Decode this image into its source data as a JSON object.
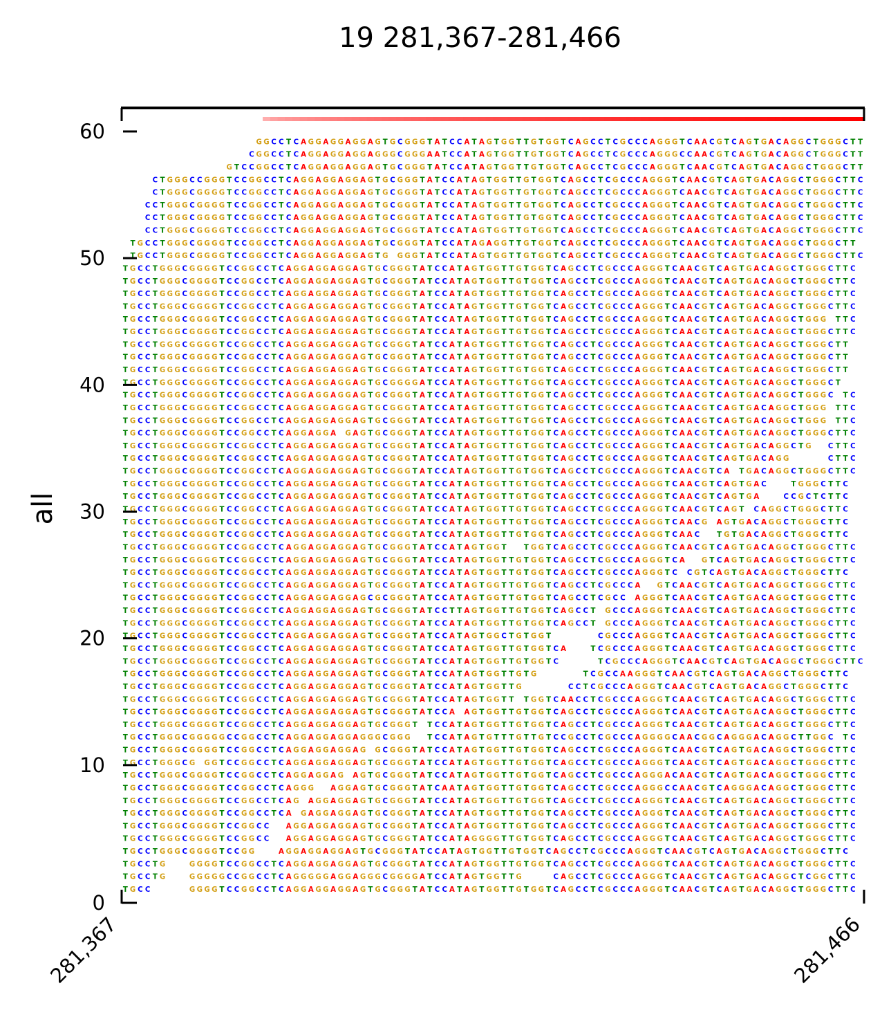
{
  "chart_data": {
    "type": "sequence-pileup",
    "title": "19 281,367-281,466",
    "ylabel": "all",
    "xlabel": "",
    "x_ticks": [
      "281,367",
      "281,466"
    ],
    "y_ticks": [
      "0",
      "10",
      "20",
      "30",
      "40",
      "50",
      "60"
    ],
    "xlim": [
      281367,
      281466
    ],
    "ylim": [
      0,
      60
    ],
    "base_colors": {
      "A": "#ff0000",
      "C": "#0000ff",
      "G": "#d4a017",
      "T": "#008000"
    },
    "coverage_bar": {
      "start": 281386,
      "end": 281466,
      "min_color": "#ffcccc",
      "max_color": "#ff0000"
    },
    "reads": [
      "TGCC     GGGGTCCGGCCTCAGGAGGAGGAGTGCGGGTATCCATAGTGGTTGTGGTCAGCCTCGCCCAGGGTCAACGTCAGTGACAGGCTGGGCTTC",
      "TGCCTG   GGGGGCCGGCCTCAGGGGGAGGAGGGCGGGGATCCATAGTGGTTG    CAGCCTCGCCCAGGGTCAACGTCAGTGACAGGCTCGGCTTC",
      "TGCCTG   GGGGTCCGGCCTCAGGAGGAGGAGTGCGGGTATCCATAGTGGTTGTGGTCAGCCTCGCCCAGGGTCAACGTCAGTGACAGGCTGGGCTTC",
      "TGCCTGGGCGGGGTCCGG   AGGAGGAGGAGTGCGGGTATCCATAGTGGTTGTGGTCAGCCTCGCCCAGGGTCAACGTCAGTGACAGGCTGGGCTTC",
      "TGCCTGGGCGGGGTCCGGCC  AGGAGGAGGAGTGCGGGTATCCATAGGGGTTGTGGTCAGCCTCGCCCAGGGTCAACGTCAGTGACAGGCTGGGCTTC",
      "TGCCTGGGCGGGGTCCGGCC  AGGAGGAGGAGTGCGGGTATCCATAGTGGTTGTGGTCAGCCTCGCCCAGGGTCAACGTCAGTGACAGGCTGGGCTTC",
      "TGCCTGGGCGGGGTCCGGCCTCA GAGGAGGAGTGCGGGTATCCATAGTGGTTGTGGTCAGCCTCGCCCAGGGTCAACGTCAGTGACAGGCTGGGCTTC",
      "TGCCTGGGCGGGGTCCGGCCTCAG AGGAGGAGTGCGGGTATCCATAGTGGTTGTGGTCAGCCTCGCCCAGGGTCAACGTCAGTGACAGGCTGGGCTTC",
      "TGCCTGGGCGGGGTCCGGCCTCAGGG  AGGAGTGCGGGTATCAATAGTGGTTGTGGTCAGCCTCGCCCAGGGCCAACGTCAGGGACAGGCTGGGCTTC",
      "TGCCTGGGCGGGGTCCGGCCTCAGGAGGAG AGTGCGGGTATCCATAGTGGTTGTGGTCAGCCTCGCCCAGGGACAACGTCAGTGACAGGCTGGGCTTC",
      "TGCCTGGGCG GGTCCGGCCTCAGGAGGAGGAGTGCGGGTATCCATAGTGGTTGTGGTCAGCCTCGCCCAGGGTCAACGTCAGTGACAGGCTGGGCTTC",
      "TGCCTGGGCGGGGTCCGGCCTCAGGAGGAGGAG GCGGGTATCCATAGTGGTTGTGGTCAGCCTCGCCCAGGGTCAACGTCAGTGACAGGCTGGGCTTC",
      "TGCCTGGGCGGGGGCCGGCCTCAGGAGGAGGAGGGCGGG  TCCATAGTGTTTGTTGTCCGCCTCGCCCAGGGGCAACGGCAGGGACAGGCTTGGC TC",
      "TGCCTGGGCGGGGTCCGGCCTCAGGAGGAGGAGTGCGGGT TCCATAGTGGTTGTGGTCAGCCTCGCCCAGGGTCAACGTCAGTGACAGGCTGGGCTTC",
      "TGCCTGGGCGGGGTCCGGCCTCAGGAGGAGGAGTGCGGGTATCCA AGTGGTTGTGGTCAGCCTCGCCCAGGGTCAACGTCAGTGACAGGCTGGGCTTC",
      "TGCCTGGGCGGGGTCCGGCCTCAGGAGGAGGAGTGCGGGTATCCATAGTGGTT TGGTCAACCTCGCCCAGGGTCAACGTCAGTGACAGGCTGGGCTTC",
      "TGCCTGGGCGGGGTCCGGCCTCAGGAGGAGGAGTGCGGGTATCCATAGTGGTTG      CCTCGCCCAGGGTCAACGTCAGTGACAGGCTGGGCTTC",
      "TGCCTGGGCGGGGTCCGGCCTCAGGAGGAGGAGTGCGGGTATCCATAGTGGTTGTG      TCGCCAAGGGTCAACGTCAGTGACAGGCTGGGCTTC",
      "TGCCTGGGCGGGGTCCGGCCTCAGGAGGAGGAGTGCGGGTATCCATAGTGGTTGTGGTC     TCGCCCAGGGTCAACGTCAGTGACAGGCTGGGCTTC",
      "TGCCTGGGCGGGGTCCGGCCTCAGGAGGAGGAGTGCGGGTATCCATAGTGGTTGTGGTCA   TCGCCCAGGGTCAACGTCAGTGACAGGCTGGGCTTC",
      "TGCCTGGGCGGGGTCCGGCCTCAGGAGGAGGAGTGCGGGTATCCATAGTGGCTGTGGT      CGCCCAGGGTCAACGTCAGTGACAGGCTGGGCTTC",
      "TGCCTGGGCGGGGTCCGGCCTCAGGAGGAGGAGTGCGGGTATCCATAGTGGTTGTGGTCAGCCT GCCCAGGGTCAACGTCAGTGACAGGCTGGGCTTC",
      "TGCCTGGGCGGGGTCCGGCCTCAGGAGGAGGAGTGCGGGTATCCTTAGTGGTTGTGGTCAGCCT GCCCAGGGTCAACGTCAGTGACAGGCTGGGCTTC",
      "TGCCTGGGCGGGGTCCGGCCTCAGGAGGAGGAGCGCGGGTATCCATAGTGGTTGTGGTCAGCCTCGCC AGGGTCAACGTCAGTGACAGGCTGGGCTTC",
      "TGCCTGGGCGGGGTCCGGCCTCAGGAGGAGGAGTGCGGGTATCCATAGTGGTTGTGGTCAGCCTCGCCCA  GTCAACGTCAGTGACAGGCTGGGCTTC",
      "TGCCTGGGCGGGGTCCGGCCTCAGGAGGAGGAGTGCGGGTATCCATAGTGGTTGTGGTCAGCCTCGCCCAGGGTC CGTCAGTGACAGGCTGGGCTTC",
      "TGCCTGGGCGGGGTCCGGCCTCAGGAGGAGGAGTGCGGGTATCCATAGTGGTTGTGGTCAGCCTCGCCCAGGGTCA  GTCAGTGACAGGCTGGGCTTC",
      "TGCCTGGGCGGGGTCCGGCCTCAGGAGGAGGAGTGCGGGTATCCATAGTGGT  TGGTCAGCCTCGCCCAGGGTCAACGTCAGTGACAGGCTGGGCTTC",
      "TGCCTGGGCGGGGTCCGGCCTCAGGAGGAGGAGTGCGGGTATCCATAGTGGTTGTGGTCAGCCTCGCCCAGGGTCAAC  TGTGACAGGCTGGGCTTC",
      "TGCCTGGGCGGGGTCCGGCCTCAGGAGGAGGAGTGCGGGTATCCATAGTGGTTGTGGTCAGCCTCGCCCAGGGTCAACG AGTGACAGGCTGGGCTTC",
      "TGCCTGGGCGGGGTCCGGCCTCAGGAGGAGGAGTGCGGGTATCCATAGTGGTTGTGGTCAGCCTCGCCCAGGGTCAACGTCAGT CAGGCTGGGCTTC",
      "TGCCTGGGCGGGGTCCGGCCTCAGGAGGAGGAGTGCGGGTATCCATAGTGGTTGTGGTCAGCCTCGCCCAGGGTCAACGTCAGTGA   CCGCTCTTC",
      "TGCCTGGGCGGGGTCCGGCCTCAGGAGGAGGAGTGCGGGTATCCATAGTGGTTGTGGTCAGCCTCGCCCAGGGTCAACGTCAGTGAC   TGGGCTTC",
      "TGCCTGGGCGGGGTCCGGCCTCAGGAGGAGGAGTGCGGGTATCCATAGTGGTTGTGGTCAGCCTCGCCCAGGGTCAACGTCA TGACAGGCTGGGCTTC",
      "TGCCTGGGCGGGGTCCGGCCTCAGGAGGAGGAGTGCGGGTATCCATAGTGGTTGTGGTCAGCCTCGCCCAGGGTCAACGTCAGTGACAGG     CTTC",
      "TGCCTGGGCGGGGTCCGGCCTCAGGAGGAGGAGTGCGGGTATCCATAGTGGTTGTGGTCAGCCTCGCCCAGGGTCAACGTCAGTGACAGGCTG  CTTC",
      "TGCCTGGGCGGGGTCCGGCCTCAGGAGGA GAGTGCGGGTATCCATAGTGGTTGTGGTCAGCCTCGCCCAGGGTCAACGTCAGTGACAGGCTGGGCTTC",
      "TGCCTGGGCGGGGTCCGGCCTCAGGAGGAGGAGTGCGGGTATCCATAGTGGTTGTGGTCAGCCTCGCCCAGGGTCAACGTCAGTGACAGGCTGGG TTC",
      "TGCCTGGGCGGGGTCCGGCCTCAGGAGGAGGAGTGCGGGTATCCATAGTGGTTGTGGTCAGCCTCGCCCAGGGTCAACGTCAGTGACAGGCTGGG TTC",
      "TGCCTGGGCGGGGTCCGGCCTCAGGAGGAGGAGTGCGGGTATCCATAGTGGTTGTGGTCAGCCTCGCCCAGGGTCAACGTCAGTGACAGGCTGGGC TC",
      "TGCCTGGGCGGGGTCCGGCCTCAGGAGGAGGAGTGCGGGGATCCATAGTGGTTGTGGTCAGCCTCGCCCAGGGTCAACGTCAGTGACAGGCTGGGCT",
      "TGCCTGGGCGGGGTCCGGCCTCAGGAGGAGGAGTGCGGGTATCCATAGTGGTTGTGGTCAGCCTCGCCCAGGGTCAACGTCAGTGACAGGCTGGGCTT",
      "TGCCTGGGCGGGGTCCGGCCTCAGGAGGAGGAGTGCGGGTATCCATAGTGGTTGTGGTCAGCCTCGCCCAGGGTCAACGTCAGTGACAGGCTGGGCTT",
      "TGCCTGGGCGGGGTCCGGCCTCAGGAGGAGGAGTGCGGGTATCCATAGTGGTTGTGGTCAGCCTCGCCCAGGGTCAACGTCAGTGACAGGCTGGGCTT",
      "TGCCTGGGCGGGGTCCGGCCTCAGGAGGAGGAGTGCGGGTATCCATAGTGGTTGTGGTCAGCCTCGCCCAGGGTCAACGTCAGTGACAGGCTGGGCTTC",
      "TGCCTGGGCGGGGTCCGGCCTCAGGAGGAGGAGTGCGGGTATCCATAGTGGTTGTGGTCAGCCTCGCCCAGGGTCAACGTCAGTGACAGGCTGGG TTC",
      "TGCCTGGGCGGGGTCCGGCCTCAGGAGGAGGAGTGCGGGTATCCATAGTGGTTGTGGTCAGCCTCGCCCAGGGTCAACGTCAGTGACAGGCTGGGCTTC",
      "TGCCTGGGCGGGGTCCGGCCTCAGGAGGAGGAGTGCGGGTATCCATAGTGGTTGTGGTCAGCCTCGCCCAGGGTCAACGTCAGTGACAGGCTGGGCTTC",
      "TGCCTGGGCGGGGTCCGGCCTCAGGAGGAGGAGTGCGGGTATCCATAGTGGTTGTGGTCAGCCTCGCCCAGGGTCAACGTCAGTGACAGGCTGGGCTTC",
      "TGCCTGGGCGGGGTCCGGCCTCAGGAGGAGGAGTGCGGGTATCCATAGTGGTTGTGGTCAGCCTCGCCCAGGGTCAACGTCAGTGACAGGCTGGGCTTC",
      " TGCCTGGGCGGGGTCCGGCCTCAGGAGGAGGAGTG GGGTATCCATAGTGGTTGTGGTCAGCCTCGCCCAGGGTCAACGTCAGTGACAGGCTGGGCTTC",
      " TGCCTGGGCGGGGTCCGGCCTCAGGAGGAGGAGTGCGGGTATCCATAGAGGTTGTGGTCAGCCTCGCCCAGGGTCAACGTCAGTGACAGGCTGGGCTT",
      "   CCTGGGCGGGGTCCGGCCTCAGGAGGAGGAGTGCGGGTATCCATAGTGGTTGTGGTCAGCCTCGCCCAGGGTCAACGTCAGTGACAGGCTGGGCTTC",
      "   CCTGGGCGGGGTCCGGCCTCAGGAGGAGGAGTGCGGGTATCCATAGTGGTTGTGGTCAGCCTCGCCCAGGGTCAACGTCAGTGACAGGCTGGGCTTC",
      "   CCTGGGCGGGGTCCGGCCTCAGGAGGAGGAGTGCGGGTATCCATAGTGGTTGTGGTCAGCCTCGCCCAGGGTCAACGTCAGTGACAGGCTGGGCTTC",
      "    CTGGGCGGGGTCCGGCCTCAGGAGGAGGAGTGCGGGTATCCATAGTGGTTGTGGTCAGCCTCGCCCAGGGTCAACGTCAGTGACAGGCTGGGCTTC",
      "    CTGGGCCGGGTCCGGCCTCAGGAGGAGGAGTGCGGGTATCCATAGTGGTTGTGGTCAGCCTCGCCCAGGGTCAACGTCAGTGACAGGCTGGGCTTC",
      "              GTCCGGCCTCAGGAGGAGGAGTGCGGGTATCCATAGTGGTTGTGGTCAGCCTCGCCCAGGGTCAACGTCAGTGACAGGCTGGGCTTC",
      "                 CGGCCTCAGGAGGAGGAGGGCGGGAATCCATAGTGGTTGTGGTCAGCCTCGCCCAGGGCCAACGTCAGTGACAGGCTGGGCTTC",
      "                  GGCCTCAGGAGGAGGAGTGCGGGTATCCATAGTGGTTGTGGTCAGCCTCGCCCAGGGTCAACGTCAGTGACAGGCTGGGCTTC"
    ]
  }
}
